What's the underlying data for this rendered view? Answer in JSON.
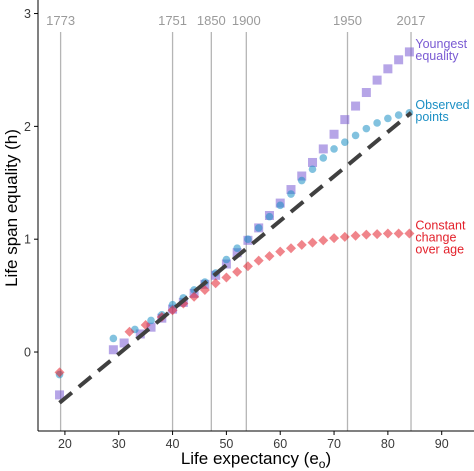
{
  "chart_data": {
    "type": "scatter",
    "title": "",
    "xlabel": "Life expectancy (e",
    "xlabel_sub": "o",
    "xlabel_close": ")",
    "ylabel": "Life span equality (h)",
    "xlim": [
      15,
      96
    ],
    "ylim": [
      -0.7,
      3.12
    ],
    "x_ticks": [
      20,
      30,
      40,
      50,
      60,
      70,
      80,
      90
    ],
    "y_ticks": [
      0,
      1,
      2,
      3
    ],
    "grid": false,
    "year_markers": [
      {
        "label": "1773",
        "x": 19.2
      },
      {
        "label": "1751",
        "x": 40.0
      },
      {
        "label": "1850",
        "x": 47.2
      },
      {
        "label": "1900",
        "x": 53.7
      },
      {
        "label": "1950",
        "x": 72.5
      },
      {
        "label": "2017",
        "x": 84.3
      }
    ],
    "reference_line": {
      "style": "dashed",
      "color": "#404040",
      "points": [
        [
          19,
          -0.45
        ],
        [
          84.3,
          2.12
        ]
      ]
    },
    "series": [
      {
        "name": "Youngest equality",
        "label_lines": [
          "Youngest",
          "equality"
        ],
        "color": "#7a5bd3",
        "marker": "square",
        "points": [
          [
            19,
            -0.38
          ],
          [
            29,
            0.02
          ],
          [
            31,
            0.08
          ],
          [
            34,
            0.16
          ],
          [
            36,
            0.22
          ],
          [
            38,
            0.3
          ],
          [
            40,
            0.38
          ],
          [
            42,
            0.44
          ],
          [
            44,
            0.52
          ],
          [
            46,
            0.6
          ],
          [
            48,
            0.68
          ],
          [
            50,
            0.78
          ],
          [
            52,
            0.88
          ],
          [
            54,
            0.99
          ],
          [
            56,
            1.1
          ],
          [
            58,
            1.21
          ],
          [
            60,
            1.32
          ],
          [
            62,
            1.44
          ],
          [
            64,
            1.56
          ],
          [
            66,
            1.68
          ],
          [
            68,
            1.8
          ],
          [
            70,
            1.93
          ],
          [
            72,
            2.06
          ],
          [
            74,
            2.18
          ],
          [
            76,
            2.3
          ],
          [
            78,
            2.41
          ],
          [
            80,
            2.51
          ],
          [
            82,
            2.59
          ],
          [
            84,
            2.66
          ]
        ]
      },
      {
        "name": "Observed points",
        "label_lines": [
          "Observed",
          "points"
        ],
        "color": "#1b8fc4",
        "marker": "circle",
        "points": [
          [
            19,
            -0.2
          ],
          [
            29,
            0.12
          ],
          [
            33,
            0.2
          ],
          [
            36,
            0.28
          ],
          [
            38,
            0.33
          ],
          [
            40,
            0.42
          ],
          [
            42,
            0.48
          ],
          [
            44,
            0.55
          ],
          [
            46,
            0.62
          ],
          [
            48,
            0.7
          ],
          [
            50,
            0.82
          ],
          [
            52,
            0.92
          ],
          [
            54,
            1.0
          ],
          [
            56,
            1.1
          ],
          [
            58,
            1.2
          ],
          [
            60,
            1.3
          ],
          [
            62,
            1.4
          ],
          [
            64,
            1.52
          ],
          [
            66,
            1.62
          ],
          [
            68,
            1.72
          ],
          [
            70,
            1.8
          ],
          [
            72,
            1.86
          ],
          [
            74,
            1.92
          ],
          [
            76,
            1.98
          ],
          [
            78,
            2.03
          ],
          [
            80,
            2.07
          ],
          [
            82,
            2.1
          ],
          [
            84,
            2.12
          ]
        ]
      },
      {
        "name": "Constant change over age",
        "label_lines": [
          "Constant",
          "change",
          "over age"
        ],
        "color": "#e3212b",
        "marker": "diamond",
        "points": [
          [
            19,
            -0.18
          ],
          [
            32,
            0.18
          ],
          [
            35,
            0.24
          ],
          [
            38,
            0.31
          ],
          [
            40,
            0.37
          ],
          [
            42,
            0.43
          ],
          [
            44,
            0.49
          ],
          [
            46,
            0.55
          ],
          [
            48,
            0.61
          ],
          [
            50,
            0.66
          ],
          [
            52,
            0.71
          ],
          [
            54,
            0.76
          ],
          [
            56,
            0.81
          ],
          [
            58,
            0.85
          ],
          [
            60,
            0.89
          ],
          [
            62,
            0.92
          ],
          [
            64,
            0.95
          ],
          [
            66,
            0.97
          ],
          [
            68,
            0.99
          ],
          [
            70,
            1.01
          ],
          [
            72,
            1.02
          ],
          [
            74,
            1.03
          ],
          [
            76,
            1.04
          ],
          [
            78,
            1.045
          ],
          [
            80,
            1.05
          ],
          [
            82,
            1.05
          ],
          [
            84,
            1.05
          ]
        ]
      }
    ]
  }
}
